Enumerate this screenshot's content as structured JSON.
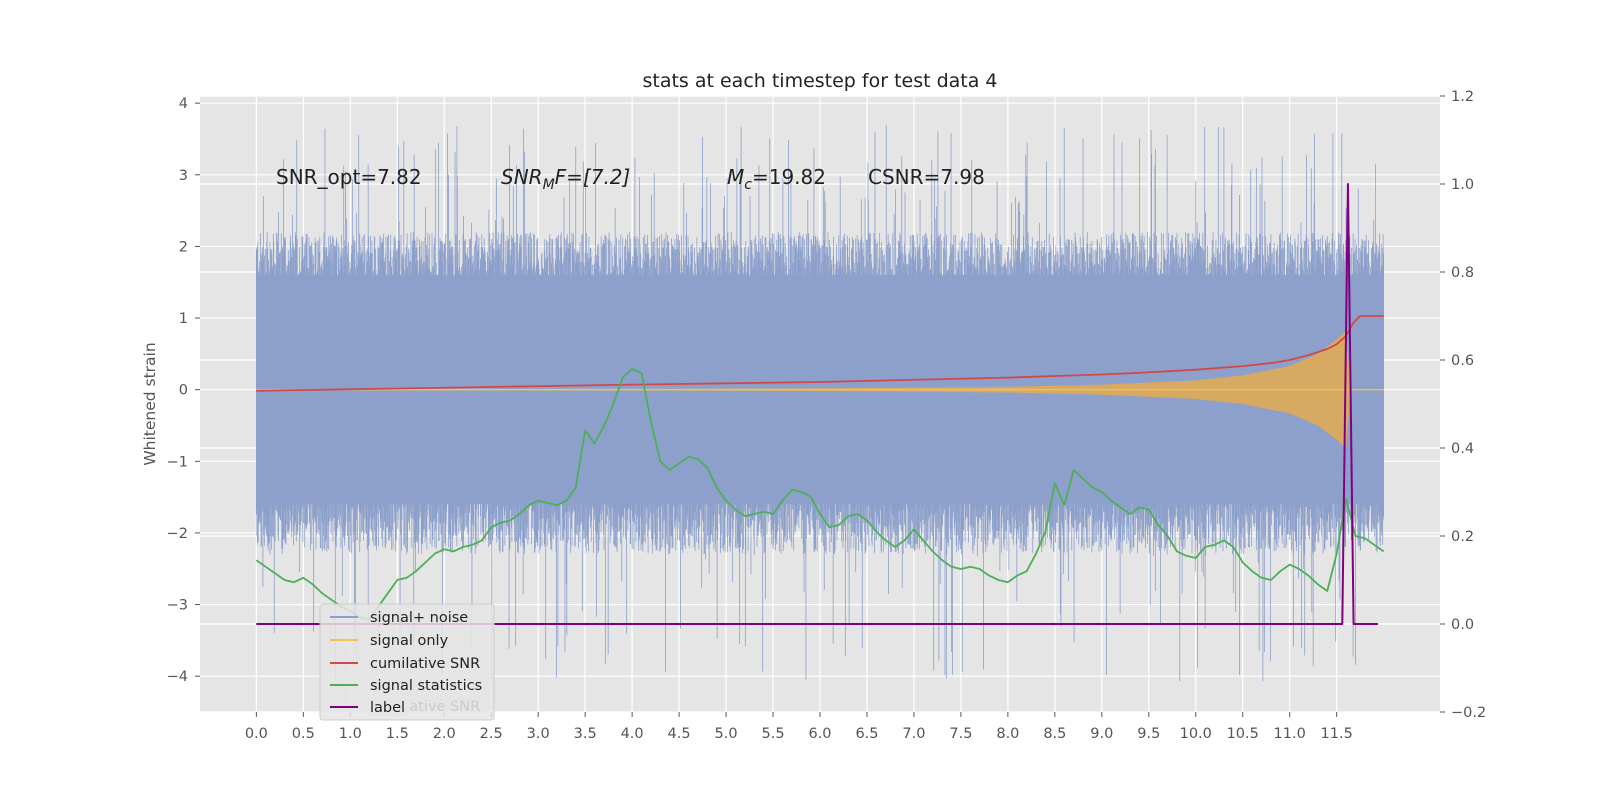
{
  "chart_data": {
    "type": "line",
    "title": "stats at each timestep for test data 4",
    "ylabel": "Whitened strain",
    "xlim": [
      -0.6,
      12.6
    ],
    "ylim": [
      -4.5,
      4.1
    ],
    "y2lim": [
      -0.2,
      1.2
    ],
    "grid": true,
    "legend_position": "lower-left",
    "x_ticks": [
      0.0,
      0.5,
      1.0,
      1.5,
      2.0,
      2.5,
      3.0,
      3.5,
      4.0,
      4.5,
      5.0,
      5.5,
      6.0,
      6.5,
      7.0,
      7.5,
      8.0,
      8.5,
      9.0,
      9.5,
      10.0,
      10.5,
      11.0,
      11.5
    ],
    "x_tick_labels": [
      "0.0",
      "0.5",
      "1.0",
      "1.5",
      "2.0",
      "2.5",
      "3.0",
      "3.5",
      "4.0",
      "4.5",
      "5.0",
      "5.5",
      "6.0",
      "6.5",
      "7.0",
      "7.5",
      "8.0",
      "8.5",
      "9.0",
      "9.5",
      "10.0",
      "10.5",
      "11.0",
      "11.5"
    ],
    "y_ticks": [
      4,
      3,
      2,
      1,
      0,
      -1,
      -2,
      -3,
      -4
    ],
    "y_tick_labels": [
      "4",
      "3",
      "2",
      "1",
      "0",
      "−1",
      "−2",
      "−3",
      "−4"
    ],
    "y2_ticks": [
      1.2,
      1.0,
      0.8,
      0.6,
      0.4,
      0.2,
      0.0,
      -0.2
    ],
    "y2_tick_labels": [
      "1.2",
      "1.0",
      "0.8",
      "0.6",
      "0.4",
      "0.2",
      "0.0",
      "−0.2"
    ],
    "annotations": {
      "snr_opt": "SNR_opt=7.82",
      "snr_mf_main": "SNR",
      "snr_mf_sub": "M",
      "snr_mf_rest": "F=[7.2]",
      "mc_main": "M",
      "mc_sub": "c",
      "mc_rest": "=19.82",
      "csnr": "CSNR=7.98"
    },
    "ghost_legend_text": "cumilative SNR",
    "series": [
      {
        "name": "signal+ noise",
        "axis": "left",
        "color": "#8da0cb",
        "x_range": [
          0.0,
          12.0
        ],
        "envelope_upper": 2.0,
        "envelope_lower": -2.1,
        "peak_high": 3.7,
        "peak_low": -4.1
      },
      {
        "name": "signal only",
        "axis": "left",
        "color": "#e8c35a",
        "x_range": [
          0.0,
          12.0
        ],
        "amplitude": {
          "x": [
            0,
            4,
            6,
            8,
            9,
            10,
            10.5,
            11,
            11.3,
            11.5,
            11.6,
            11.65
          ],
          "y": [
            0.006,
            0.01,
            0.018,
            0.04,
            0.07,
            0.13,
            0.2,
            0.33,
            0.5,
            0.7,
            0.82,
            0.0
          ]
        }
      },
      {
        "name": "cumilative SNR",
        "axis": "right",
        "color": "#d1484a",
        "x": [
          0,
          2,
          4,
          6,
          8,
          9,
          9.5,
          10,
          10.5,
          10.8,
          11,
          11.2,
          11.4,
          11.5,
          11.6,
          11.68,
          11.75,
          12.0
        ],
        "y": [
          0.53,
          0.537,
          0.544,
          0.55,
          0.56,
          0.567,
          0.572,
          0.578,
          0.586,
          0.593,
          0.6,
          0.611,
          0.625,
          0.636,
          0.655,
          0.685,
          0.7,
          0.7
        ]
      },
      {
        "name": "signal statistics",
        "axis": "right",
        "color": "#4daf58",
        "x": [
          0,
          0.1,
          0.2,
          0.3,
          0.4,
          0.5,
          0.6,
          0.7,
          0.8,
          0.9,
          1.0,
          1.1,
          1.2,
          1.3,
          1.4,
          1.5,
          1.6,
          1.7,
          1.8,
          1.9,
          2.0,
          2.1,
          2.2,
          2.3,
          2.4,
          2.5,
          2.6,
          2.7,
          2.8,
          2.9,
          3.0,
          3.1,
          3.2,
          3.3,
          3.4,
          3.5,
          3.6,
          3.7,
          3.8,
          3.9,
          4.0,
          4.1,
          4.2,
          4.3,
          4.4,
          4.5,
          4.6,
          4.7,
          4.8,
          4.9,
          5.0,
          5.1,
          5.2,
          5.3,
          5.4,
          5.5,
          5.6,
          5.7,
          5.8,
          5.9,
          6.0,
          6.1,
          6.2,
          6.3,
          6.4,
          6.5,
          6.6,
          6.7,
          6.8,
          6.9,
          7.0,
          7.1,
          7.2,
          7.3,
          7.4,
          7.5,
          7.6,
          7.7,
          7.8,
          7.9,
          8.0,
          8.1,
          8.2,
          8.3,
          8.4,
          8.5,
          8.6,
          8.7,
          8.8,
          8.9,
          9.0,
          9.1,
          9.2,
          9.3,
          9.4,
          9.5,
          9.6,
          9.7,
          9.8,
          9.9,
          10.0,
          10.1,
          10.2,
          10.3,
          10.4,
          10.5,
          10.6,
          10.7,
          10.8,
          10.9,
          11.0,
          11.1,
          11.2,
          11.3,
          11.4,
          11.5,
          11.6,
          11.7,
          11.8,
          11.9,
          12.0
        ],
        "y": [
          0.145,
          0.13,
          0.115,
          0.1,
          0.095,
          0.105,
          0.09,
          0.07,
          0.055,
          0.04,
          0.03,
          0.015,
          0.01,
          0.04,
          0.07,
          0.1,
          0.105,
          0.12,
          0.14,
          0.16,
          0.17,
          0.165,
          0.175,
          0.18,
          0.19,
          0.22,
          0.23,
          0.235,
          0.25,
          0.27,
          0.28,
          0.275,
          0.27,
          0.28,
          0.31,
          0.44,
          0.41,
          0.45,
          0.5,
          0.56,
          0.58,
          0.57,
          0.46,
          0.37,
          0.35,
          0.365,
          0.38,
          0.375,
          0.355,
          0.31,
          0.28,
          0.26,
          0.245,
          0.25,
          0.255,
          0.25,
          0.28,
          0.305,
          0.3,
          0.29,
          0.25,
          0.22,
          0.225,
          0.245,
          0.25,
          0.235,
          0.21,
          0.19,
          0.175,
          0.19,
          0.215,
          0.19,
          0.165,
          0.145,
          0.13,
          0.125,
          0.13,
          0.125,
          0.11,
          0.1,
          0.095,
          0.11,
          0.12,
          0.16,
          0.21,
          0.32,
          0.27,
          0.35,
          0.33,
          0.31,
          0.3,
          0.28,
          0.265,
          0.25,
          0.265,
          0.26,
          0.225,
          0.2,
          0.165,
          0.155,
          0.15,
          0.175,
          0.18,
          0.19,
          0.175,
          0.14,
          0.12,
          0.105,
          0.1,
          0.12,
          0.135,
          0.125,
          0.11,
          0.09,
          0.075,
          0.16,
          0.285,
          0.2,
          0.195,
          0.18,
          0.165
        ]
      },
      {
        "name": "label",
        "axis": "right",
        "color": "#800080",
        "x": [
          0,
          11.56,
          11.62,
          11.68,
          11.94
        ],
        "y": [
          0,
          0,
          1.0,
          0,
          0
        ]
      }
    ]
  }
}
